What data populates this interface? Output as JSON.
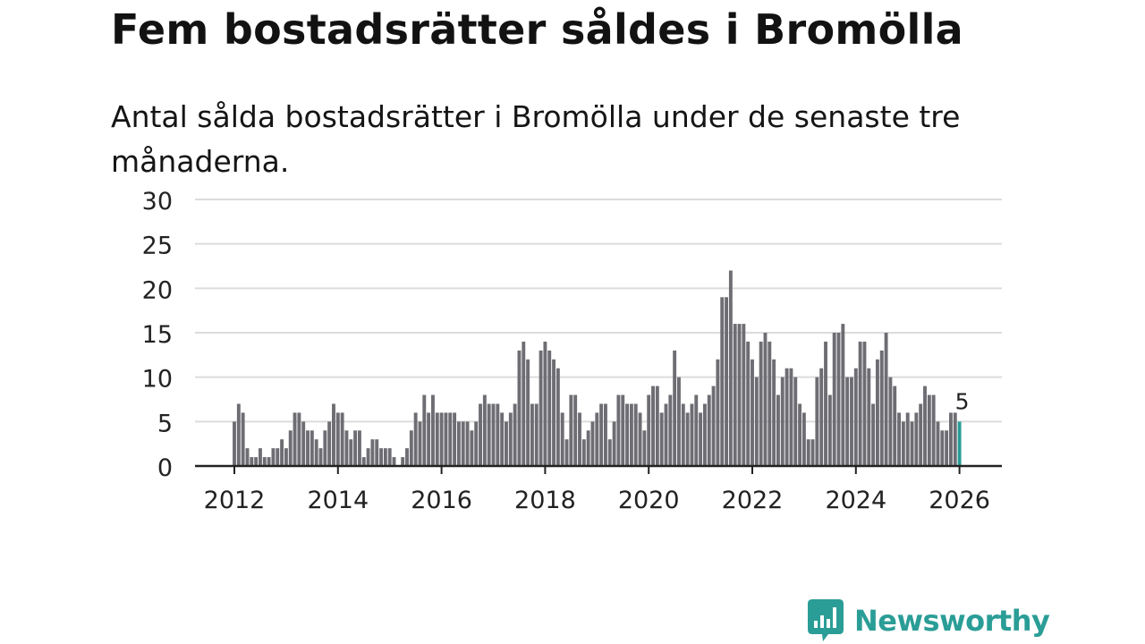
{
  "title": "Fem bostadsrätter såldes i Bromölla",
  "subtitle": "Antal sålda bostadsrätter i Bromölla under de senaste tre månaderna.",
  "brand": {
    "name": "Newsworthy",
    "color": "#2a9d96",
    "icon": "newsworthy-logo-icon"
  },
  "colors": {
    "bar": "#6e6d73",
    "highlight": "#2a9d96",
    "grid": "#dcdcdc",
    "axis": "#222222"
  },
  "chart_data": {
    "type": "bar",
    "title": "Fem bostadsrätter såldes i Bromölla",
    "xlabel": "",
    "ylabel": "",
    "ylim": [
      0,
      30
    ],
    "yticks": [
      "0",
      "5",
      "10",
      "15",
      "20",
      "25",
      "30"
    ],
    "xticks": [
      "2012",
      "2014",
      "2016",
      "2018",
      "2020",
      "2022",
      "2024",
      "2026"
    ],
    "start": {
      "year": 2012,
      "month": 1
    },
    "values": [
      5,
      7,
      6,
      2,
      1,
      1,
      2,
      1,
      1,
      2,
      2,
      3,
      2,
      4,
      6,
      6,
      5,
      4,
      4,
      3,
      2,
      4,
      5,
      7,
      6,
      6,
      4,
      3,
      4,
      4,
      1,
      2,
      3,
      3,
      2,
      2,
      2,
      1,
      0,
      1,
      2,
      4,
      6,
      5,
      8,
      6,
      8,
      6,
      6,
      6,
      6,
      6,
      5,
      5,
      5,
      4,
      5,
      7,
      8,
      7,
      7,
      7,
      6,
      5,
      6,
      7,
      13,
      14,
      12,
      7,
      7,
      13,
      14,
      13,
      12,
      11,
      6,
      3,
      8,
      8,
      6,
      3,
      4,
      5,
      6,
      7,
      7,
      3,
      5,
      8,
      8,
      7,
      7,
      7,
      6,
      4,
      8,
      9,
      9,
      6,
      7,
      8,
      13,
      10,
      7,
      6,
      7,
      8,
      6,
      7,
      8,
      9,
      12,
      19,
      19,
      22,
      16,
      16,
      16,
      14,
      12,
      10,
      14,
      15,
      14,
      12,
      8,
      10,
      11,
      11,
      10,
      7,
      6,
      3,
      3,
      10,
      11,
      14,
      8,
      15,
      15,
      16,
      10,
      10,
      11,
      14,
      14,
      11,
      7,
      12,
      13,
      15,
      10,
      9,
      6,
      5,
      6,
      5,
      6,
      7,
      9,
      8,
      8,
      5,
      4,
      4,
      6,
      6,
      5
    ],
    "highlight_last": true,
    "annotation": "5"
  }
}
